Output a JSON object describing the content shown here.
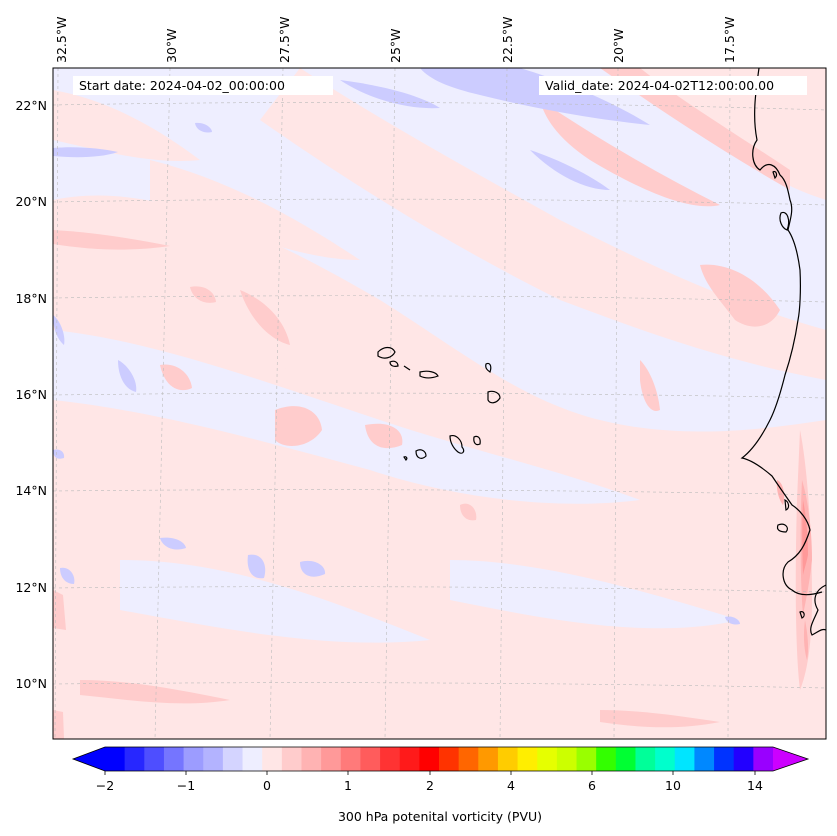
{
  "map": {
    "start_date_text": "Start date: 2024-04-02_00:00:00",
    "valid_date_text": "Valid_date: 2024-04-02T12:00:00.00",
    "longitude_labels": [
      "32.5°W",
      "30°W",
      "27.5°W",
      "25°W",
      "22.5°W",
      "20°W",
      "17.5°W"
    ],
    "latitude_labels": [
      "22°N",
      "20°N",
      "18°N",
      "16°N",
      "14°N",
      "12°N",
      "10°N"
    ],
    "gridlines": true,
    "field_colors": {
      "light_blue": "#eeeeff",
      "blue": "#ccccff",
      "light_red": "#ffe6e6",
      "red": "#ffcccc",
      "coast": "#000000"
    }
  },
  "colorbar": {
    "label": "300 hPa potenital vorticity (PVU)",
    "tick_labels": [
      "−2",
      "−1",
      "0",
      "1",
      "2",
      "4",
      "6",
      "10",
      "14"
    ],
    "colors": [
      "#0000ff",
      "#2727ff",
      "#4e4eff",
      "#7575ff",
      "#9c9cff",
      "#b3b3ff",
      "#d4d4ff",
      "#eeeeff",
      "#ffe6e6",
      "#ffcccc",
      "#ffb3b3",
      "#ff9999",
      "#ff7a7a",
      "#ff5c5c",
      "#ff3333",
      "#ff1a1a",
      "#ff0000",
      "#ff3300",
      "#ff6600",
      "#ff9900",
      "#ffcc00",
      "#ffee00",
      "#e6ff00",
      "#ccff00",
      "#99ff00",
      "#33ff00",
      "#00ff33",
      "#00ff99",
      "#00ffcc",
      "#00e5ff",
      "#0088ff",
      "#0033ff",
      "#2200ff",
      "#9900ff"
    ],
    "under_color": "#0000ff",
    "over_color": "#cc00ff"
  }
}
